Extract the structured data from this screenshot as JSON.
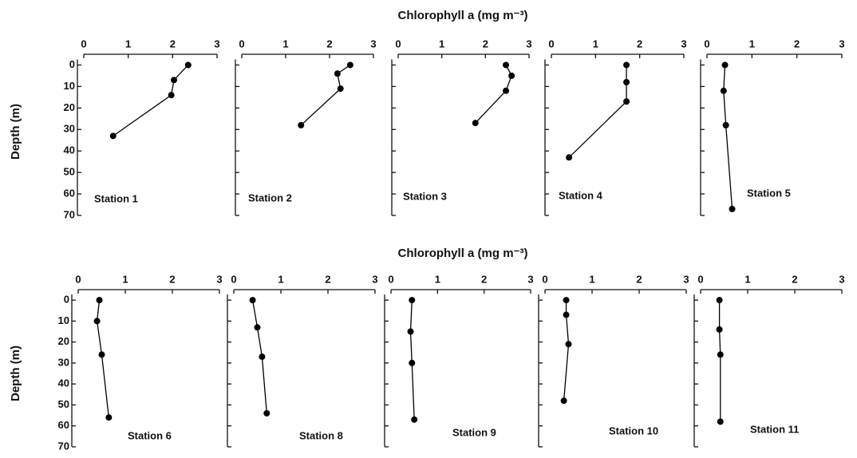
{
  "figure": {
    "rows": [
      {
        "title": "Chlorophyll a (mg m⁻³)",
        "ylabel": "Depth (m)"
      },
      {
        "title": "Chlorophyll a (mg m⁻³)",
        "ylabel": "Depth (m)"
      }
    ]
  },
  "chart_data": [
    {
      "type": "line",
      "title": "Station 1",
      "x": [
        2.35,
        2.03,
        1.97,
        0.66
      ],
      "y": [
        0,
        7,
        14,
        33
      ],
      "color": "#000000",
      "xlim": [
        0,
        3
      ],
      "xticks": [
        0,
        1,
        2,
        3
      ],
      "ylim": [
        -5,
        70
      ],
      "yticks": [
        0,
        10,
        20,
        30,
        40,
        50,
        60,
        70
      ],
      "ytick_labels": true,
      "y_inverted": true
    },
    {
      "type": "line",
      "title": "Station 2",
      "x": [
        2.47,
        2.18,
        2.25,
        1.35
      ],
      "y": [
        0,
        4,
        11,
        28
      ],
      "color": "#000000",
      "xlim": [
        0,
        3
      ],
      "xticks": [
        0,
        1,
        2,
        3
      ],
      "ylim": [
        -5,
        70
      ],
      "yticks": [
        0,
        10,
        20,
        30,
        40,
        50,
        60,
        70
      ],
      "ytick_labels": false,
      "y_inverted": true
    },
    {
      "type": "line",
      "title": "Station 3",
      "x": [
        2.47,
        2.6,
        2.47,
        1.77
      ],
      "y": [
        0,
        5,
        12,
        27
      ],
      "color": "#000000",
      "xlim": [
        0,
        3
      ],
      "xticks": [
        0,
        1,
        2,
        3
      ],
      "ylim": [
        -5,
        70
      ],
      "yticks": [
        0,
        10,
        20,
        30,
        40,
        50,
        60,
        70
      ],
      "ytick_labels": false,
      "y_inverted": true
    },
    {
      "type": "line",
      "title": "Station 4",
      "x": [
        1.7,
        1.7,
        1.7,
        0.4
      ],
      "y": [
        0,
        8,
        17,
        43
      ],
      "color": "#000000",
      "xlim": [
        0,
        3
      ],
      "xticks": [
        0,
        1,
        2,
        3
      ],
      "ylim": [
        -5,
        70
      ],
      "yticks": [
        0,
        10,
        20,
        30,
        40,
        50,
        60,
        70
      ],
      "ytick_labels": false,
      "y_inverted": true
    },
    {
      "type": "line",
      "title": "Station 5",
      "x": [
        0.4,
        0.37,
        0.42,
        0.56
      ],
      "y": [
        0,
        12,
        28,
        67
      ],
      "color": "#000000",
      "xlim": [
        0,
        3
      ],
      "xticks": [
        0,
        1,
        2,
        3
      ],
      "ylim": [
        -5,
        70
      ],
      "yticks": [
        0,
        10,
        20,
        30,
        40,
        50,
        60,
        70
      ],
      "ytick_labels": false,
      "y_inverted": true
    },
    {
      "type": "line",
      "title": "Station 6",
      "x": [
        0.45,
        0.4,
        0.5,
        0.65
      ],
      "y": [
        0,
        10,
        26,
        56
      ],
      "color": "#000000",
      "xlim": [
        0,
        3
      ],
      "xticks": [
        0,
        1,
        2,
        3
      ],
      "ylim": [
        -5,
        70
      ],
      "yticks": [
        0,
        10,
        20,
        30,
        40,
        50,
        60,
        70
      ],
      "ytick_labels": true,
      "y_inverted": true
    },
    {
      "type": "line",
      "title": "Station 8",
      "x": [
        0.4,
        0.5,
        0.6,
        0.7
      ],
      "y": [
        0,
        13,
        27,
        54
      ],
      "color": "#000000",
      "xlim": [
        0,
        3
      ],
      "xticks": [
        0,
        1,
        2,
        3
      ],
      "ylim": [
        -5,
        70
      ],
      "yticks": [
        0,
        10,
        20,
        30,
        40,
        50,
        60,
        70
      ],
      "ytick_labels": false,
      "y_inverted": true
    },
    {
      "type": "line",
      "title": "Station 9",
      "x": [
        0.45,
        0.42,
        0.45,
        0.5
      ],
      "y": [
        0,
        15,
        30,
        57
      ],
      "color": "#000000",
      "xlim": [
        0,
        3
      ],
      "xticks": [
        0,
        1,
        2,
        3
      ],
      "ylim": [
        -5,
        70
      ],
      "yticks": [
        0,
        10,
        20,
        30,
        40,
        50,
        60,
        70
      ],
      "ytick_labels": false,
      "y_inverted": true
    },
    {
      "type": "line",
      "title": "Station 10",
      "x": [
        0.45,
        0.45,
        0.5,
        0.4
      ],
      "y": [
        0,
        7,
        21,
        48
      ],
      "color": "#000000",
      "xlim": [
        0,
        3
      ],
      "xticks": [
        0,
        1,
        2,
        3
      ],
      "ylim": [
        -5,
        70
      ],
      "yticks": [
        0,
        10,
        20,
        30,
        40,
        50,
        60,
        70
      ],
      "ytick_labels": false,
      "y_inverted": true
    },
    {
      "type": "line",
      "title": "Station 11",
      "x": [
        0.4,
        0.4,
        0.42,
        0.42
      ],
      "y": [
        0,
        14,
        26,
        58
      ],
      "color": "#000000",
      "xlim": [
        0,
        3
      ],
      "xticks": [
        0,
        1,
        2,
        3
      ],
      "ylim": [
        -5,
        70
      ],
      "yticks": [
        0,
        10,
        20,
        30,
        40,
        50,
        60,
        70
      ],
      "ytick_labels": false,
      "y_inverted": true
    }
  ]
}
